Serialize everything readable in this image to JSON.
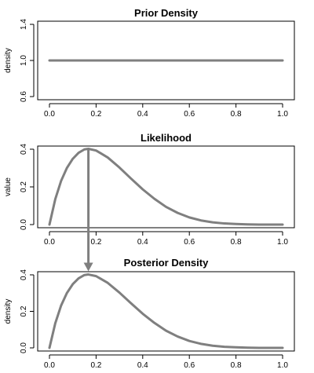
{
  "chart_data": [
    {
      "type": "line",
      "title": "Prior Density",
      "xlabel": "",
      "ylabel": "density",
      "xlim": [
        0,
        1
      ],
      "ylim": [
        0.6,
        1.4
      ],
      "xticks": [
        "0.0",
        "0.2",
        "0.4",
        "0.6",
        "0.8",
        "1.0"
      ],
      "yticks": [
        "0.6",
        "1.0",
        "1.4"
      ],
      "series": [
        {
          "x": [
            0.0,
            0.2,
            0.4,
            0.6,
            0.8,
            1.0
          ],
          "y": [
            1.0,
            1.0,
            1.0,
            1.0,
            1.0,
            1.0
          ]
        }
      ],
      "grid": false
    },
    {
      "type": "line",
      "title": "Likelihood",
      "xlabel": "",
      "ylabel": "value",
      "xlim": [
        0,
        1
      ],
      "ylim": [
        0,
        0.4
      ],
      "xticks": [
        "0.0",
        "0.2",
        "0.4",
        "0.6",
        "0.8",
        "1.0"
      ],
      "yticks": [
        "0.0",
        "0.2",
        "0.4"
      ],
      "series": [
        {
          "x": [
            0.0,
            0.025,
            0.05,
            0.075,
            0.1,
            0.125,
            0.15,
            0.167,
            0.2,
            0.25,
            0.3,
            0.35,
            0.4,
            0.45,
            0.5,
            0.55,
            0.6,
            0.65,
            0.7,
            0.75,
            0.8,
            0.85,
            0.9,
            0.95,
            1.0
          ],
          "y": [
            0.0,
            0.135,
            0.232,
            0.301,
            0.349,
            0.381,
            0.399,
            0.402,
            0.393,
            0.356,
            0.303,
            0.244,
            0.187,
            0.137,
            0.094,
            0.062,
            0.038,
            0.022,
            0.012,
            0.006,
            0.003,
            0.001,
            0.0,
            0.0,
            0.0
          ]
        }
      ],
      "grid": false
    },
    {
      "type": "line",
      "title": "Posterior Density",
      "xlabel": "",
      "ylabel": "density",
      "xlim": [
        0,
        1
      ],
      "ylim": [
        0,
        0.4
      ],
      "xticks": [
        "0.0",
        "0.2",
        "0.4",
        "0.6",
        "0.8",
        "1.0"
      ],
      "yticks": [
        "0.0",
        "0.2",
        "0.4"
      ],
      "series": [
        {
          "x": [
            0.0,
            0.025,
            0.05,
            0.075,
            0.1,
            0.125,
            0.15,
            0.167,
            0.2,
            0.25,
            0.3,
            0.35,
            0.4,
            0.45,
            0.5,
            0.55,
            0.6,
            0.65,
            0.7,
            0.75,
            0.8,
            0.85,
            0.9,
            0.95,
            1.0
          ],
          "y": [
            0.0,
            0.135,
            0.232,
            0.301,
            0.349,
            0.381,
            0.399,
            0.402,
            0.393,
            0.356,
            0.303,
            0.244,
            0.187,
            0.137,
            0.094,
            0.062,
            0.038,
            0.022,
            0.012,
            0.006,
            0.003,
            0.001,
            0.0,
            0.0,
            0.0
          ]
        }
      ],
      "grid": false
    }
  ],
  "annotation": {
    "type": "arrow",
    "from_panel": 1,
    "to_panel": 2,
    "x": 0.167
  },
  "colors": {
    "curve": "#7f7f7f",
    "axes": "#000000",
    "background": "#ffffff"
  }
}
